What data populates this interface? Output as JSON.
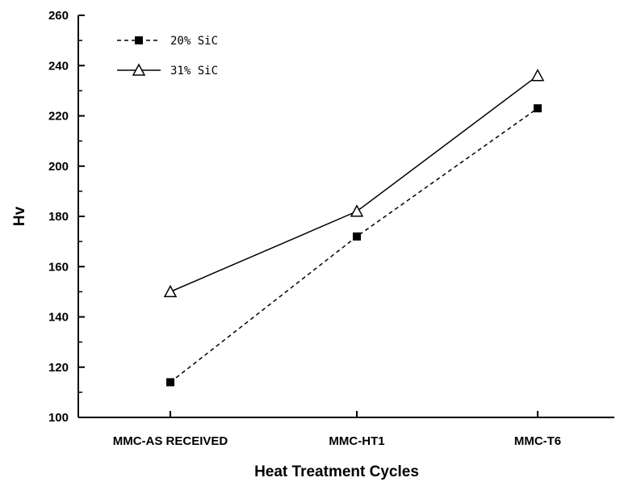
{
  "chart_data": {
    "type": "line",
    "title": "",
    "xlabel": "Heat Treatment Cycles",
    "ylabel": "Hv",
    "categories": [
      "MMC-AS RECEIVED",
      "MMC-HT1",
      "MMC-T6"
    ],
    "ylim": [
      100,
      260
    ],
    "yticks": [
      100,
      120,
      140,
      160,
      180,
      200,
      220,
      240,
      260
    ],
    "grid": false,
    "legend_position": "top-left",
    "series": [
      {
        "name": "20% SiC",
        "values": [
          114,
          172,
          223
        ],
        "line_style": "dashed",
        "marker": "filled-square",
        "color": "#000000"
      },
      {
        "name": "31% SiC",
        "values": [
          150,
          182,
          236
        ],
        "line_style": "solid",
        "marker": "open-triangle",
        "color": "#000000"
      }
    ]
  }
}
